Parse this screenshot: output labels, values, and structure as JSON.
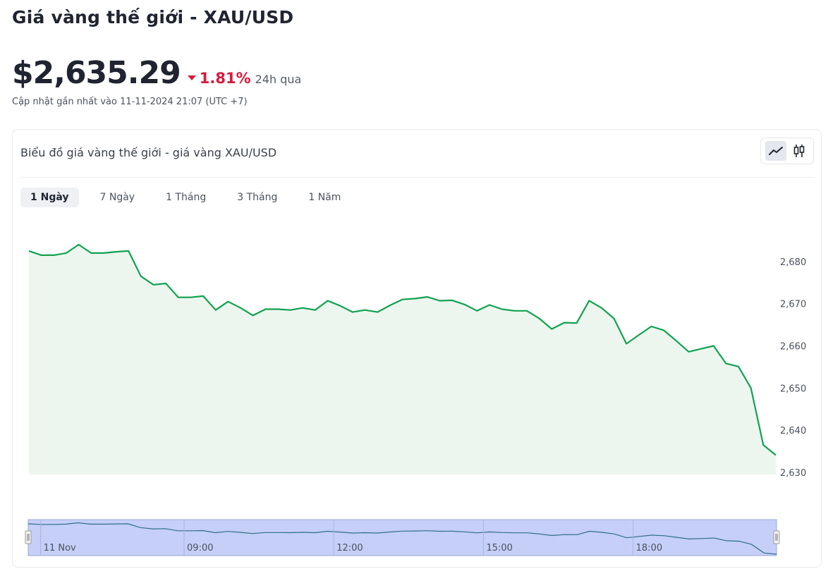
{
  "header": {
    "title": "Giá vàng thế giới - XAU/USD"
  },
  "price": {
    "value": "$2,635.29",
    "change": "1.81%",
    "period": "24h qua",
    "updated": "Cập nhật gần nhất vào 11-11-2024 21:07 (UTC +7)"
  },
  "chart_card": {
    "title": "Biểu đồ giá vàng thế giới - giá vàng XAU/USD",
    "chart_types": [
      {
        "icon": "line-chart-icon"
      },
      {
        "icon": "candlestick-icon"
      }
    ],
    "tabs": [
      {
        "label": "1 Ngày",
        "active": true
      },
      {
        "label": "7 Ngày",
        "active": false
      },
      {
        "label": "1 Tháng",
        "active": false
      },
      {
        "label": "3 Tháng",
        "active": false
      },
      {
        "label": "1 Năm",
        "active": false
      }
    ]
  },
  "colors": {
    "line": "#12a150",
    "area": "#ecf6ef",
    "down": "#d81b3c",
    "navigator_fill": "#c5cff7"
  },
  "chart_data": {
    "type": "area",
    "series": [
      {
        "values": [
          2682.5,
          2681.5,
          2681.5,
          2682.0,
          2684.0,
          2682.0,
          2682.0,
          2682.3,
          2682.5,
          2676.5,
          2674.5,
          2674.8,
          2671.5,
          2671.5,
          2671.8,
          2668.5,
          2670.5,
          2669.0,
          2667.2,
          2668.7,
          2668.7,
          2668.5,
          2669.0,
          2668.5,
          2670.7,
          2669.5,
          2668.0,
          2668.5,
          2668.0,
          2669.6,
          2671.0,
          2671.2,
          2671.6,
          2670.7,
          2670.8,
          2669.8,
          2668.3,
          2669.7,
          2668.7,
          2668.3,
          2668.3,
          2666.5,
          2664.0,
          2665.5,
          2665.4,
          2670.7,
          2669.0,
          2666.5,
          2660.5,
          2662.6,
          2664.6,
          2663.7,
          2661.2,
          2658.6,
          2659.3,
          2660.0,
          2655.8,
          2655.1,
          2650.0,
          2636.5,
          2634.1
        ]
      }
    ],
    "y_ticks": [
      "2,630",
      "2,640",
      "2,650",
      "2,660",
      "2,670",
      "2,680"
    ],
    "y_tick_values": [
      2630,
      2640,
      2650,
      2660,
      2670,
      2680
    ],
    "ylim": [
      2629.5,
      2689.5
    ],
    "navigator_labels": [
      "11 Nov",
      "09:00",
      "12:00",
      "15:00",
      "18:00"
    ],
    "navigator_label_index": [
      1,
      12.5,
      24.5,
      36.5,
      48.5
    ],
    "grid": false
  }
}
